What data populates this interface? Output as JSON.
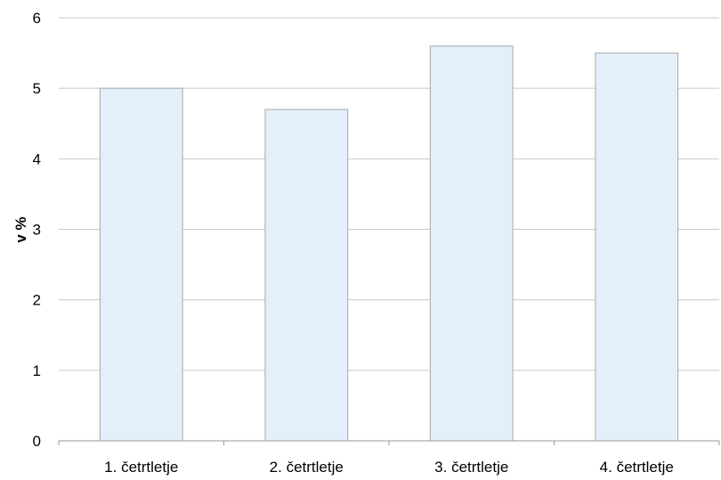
{
  "chart_data": {
    "type": "bar",
    "categories": [
      "1. četrtletje",
      "2. četrtletje",
      "3. četrtletje",
      "4. četrtletje"
    ],
    "values": [
      5.0,
      4.7,
      5.6,
      5.5
    ],
    "title": "",
    "xlabel": "",
    "ylabel": "v %",
    "ylim": [
      0,
      6
    ],
    "yticks": [
      "0",
      "1",
      "2",
      "3",
      "4",
      "5",
      "6"
    ],
    "grid": "horizontal",
    "legend": "none",
    "bar_color": "#e3effa",
    "bar_border_color": "#a6aab0"
  }
}
